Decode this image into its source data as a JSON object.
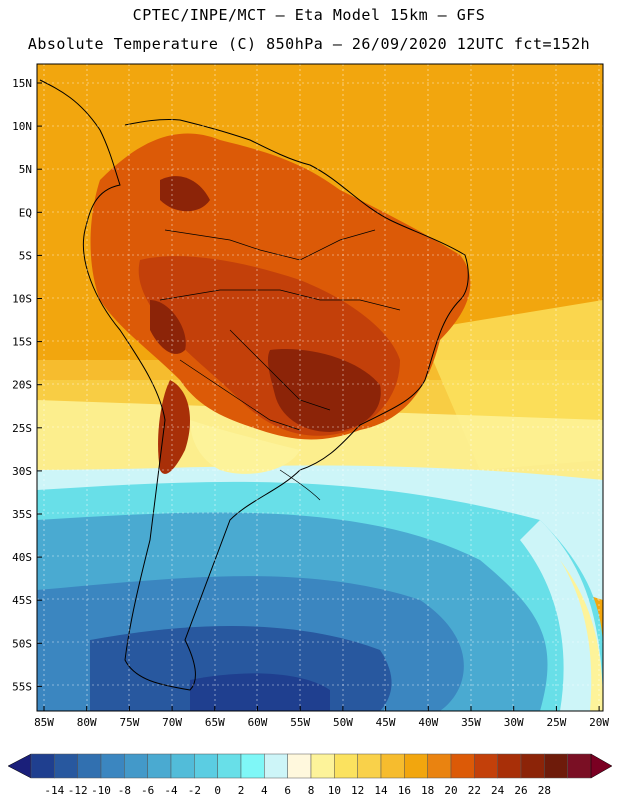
{
  "header": {
    "line1": "CPTEC/INPE/MCT –  Eta Model 15km – GFS",
    "line2": "Absolute Temperature (C) 850hPa – 26/09/2020 12UTC fct=152h"
  },
  "map": {
    "lat_labels": [
      "15N",
      "10N",
      "5N",
      "EQ",
      "5S",
      "10S",
      "15S",
      "20S",
      "25S",
      "30S",
      "35S",
      "40S",
      "45S",
      "50S",
      "55S"
    ],
    "lon_labels": [
      "85W",
      "80W",
      "75W",
      "70W",
      "65W",
      "60W",
      "55W",
      "50W",
      "45W",
      "40W",
      "35W",
      "30W",
      "25W",
      "20W"
    ],
    "lat_range": [
      17,
      -58
    ],
    "lon_range": [
      -86,
      -20
    ]
  },
  "colorbar": {
    "labels": [
      "-14",
      "-12",
      "-10",
      "-8",
      "-6",
      "-4",
      "-2",
      "0",
      "2",
      "4",
      "6",
      "8",
      "10",
      "12",
      "14",
      "16",
      "18",
      "20",
      "22",
      "24",
      "26",
      "28"
    ],
    "colors": [
      "#1f3f8f",
      "#28589f",
      "#3170b0",
      "#3b86c0",
      "#4399c9",
      "#4aaad1",
      "#52bcd9",
      "#5bcde2",
      "#68dfe8",
      "#7ff7f7",
      "#cdf5f8",
      "#fff8dd",
      "#fdf39a",
      "#fbe25f",
      "#f9d14a",
      "#f6bc2e",
      "#f2a60e",
      "#ea8310",
      "#dc5a07",
      "#c3400a",
      "#a82f08",
      "#8c2408",
      "#6e1b0a",
      "#7a0f24"
    ],
    "under_color": "#1a1f7a",
    "over_color": "#7a0022"
  }
}
